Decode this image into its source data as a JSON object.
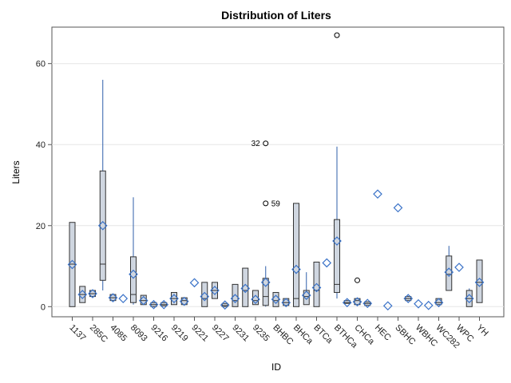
{
  "chart_data": {
    "type": "box",
    "title": "Distribution of Liters",
    "xlabel": "ID",
    "ylabel": "Liters",
    "ylim": [
      -2.5,
      69
    ],
    "yticks": [
      0,
      20,
      40,
      60
    ],
    "grid": "horizontal",
    "colors": {
      "box_fill": "#cfd6e0",
      "box_edge": "#333333",
      "whisker": "#2f5faa",
      "mean_marker": "#3b73c8",
      "grid": "#e6e6e6"
    },
    "categories": [
      "1137",
      "285C",
      "4085",
      "8093",
      "9216",
      "9219",
      "9221",
      "9227",
      "9231",
      "9235",
      "BHBC",
      "BHCa",
      "BTCa",
      "BTHCa",
      "CHCa",
      "HEC",
      "SBHC",
      "WBHC",
      "WC282",
      "WPC",
      "YH"
    ],
    "extra_groups": [
      {
        "after": "1137",
        "count": 1
      },
      {
        "after": "285C",
        "count": 1
      },
      {
        "after": "4085",
        "count": 1
      },
      {
        "after": "8093",
        "count": 1
      },
      {
        "after": "9216",
        "count": 1
      },
      {
        "after": "9219",
        "count": 1
      },
      {
        "after": "9221",
        "count": 1
      },
      {
        "after": "9227",
        "count": 1
      },
      {
        "after": "9231",
        "count": 1
      },
      {
        "after": "9235",
        "count": 1
      },
      {
        "after": "BHBC",
        "count": 1
      },
      {
        "after": "BHCa",
        "count": 1
      },
      {
        "after": "BTCa",
        "count": 1
      },
      {
        "after": "BTHCa",
        "count": 1
      },
      {
        "after": "CHCa",
        "count": 1
      },
      {
        "after": "HEC",
        "count": 1
      },
      {
        "after": "SBHC",
        "count": 1
      },
      {
        "after": "WBHC",
        "count": 1
      },
      {
        "after": "WC282",
        "count": 1
      },
      {
        "after": "WPC",
        "count": 1
      }
    ],
    "boxes": [
      {
        "q1": 0,
        "median": 10.5,
        "q3": 20.8,
        "wlo": 0,
        "whi": 20.8,
        "mean": 10.4
      },
      {
        "q1": 1,
        "median": 3,
        "q3": 5,
        "wlo": 1,
        "whi": 5,
        "mean": 3
      },
      {
        "q1": 2.5,
        "median": 3.2,
        "q3": 4,
        "wlo": 2.5,
        "whi": 4,
        "mean": 3.2
      },
      {
        "q1": 6.5,
        "median": 10.5,
        "q3": 33.5,
        "wlo": 4,
        "whi": 56,
        "mean": 20
      },
      {
        "q1": 1.5,
        "median": 2.2,
        "q3": 3,
        "wlo": 1.5,
        "whi": 3,
        "mean": 2.2
      },
      {
        "q1": null,
        "median": null,
        "q3": null,
        "wlo": null,
        "whi": null,
        "mean": 2
      },
      {
        "q1": 1,
        "median": 3,
        "q3": 12.3,
        "wlo": 0.5,
        "whi": 27,
        "mean": 8
      },
      {
        "q1": 0.5,
        "median": 1.5,
        "q3": 2.8,
        "wlo": 0.5,
        "whi": 2.8,
        "mean": 1.5
      },
      {
        "q1": 0,
        "median": 0.5,
        "q3": 1,
        "wlo": 0,
        "whi": 1,
        "mean": 0.5
      },
      {
        "q1": 0.2,
        "median": 0.5,
        "q3": 1,
        "wlo": 0.2,
        "whi": 1,
        "mean": 0.5
      },
      {
        "q1": 0.5,
        "median": 2,
        "q3": 3.5,
        "wlo": 0.5,
        "whi": 3.5,
        "mean": 2
      },
      {
        "q1": 0.5,
        "median": 1.5,
        "q3": 2.2,
        "wlo": 0.5,
        "whi": 2.2,
        "mean": 1.3
      },
      {
        "q1": null,
        "median": null,
        "q3": null,
        "wlo": null,
        "whi": null,
        "mean": 5.9
      },
      {
        "q1": 0,
        "median": 2,
        "q3": 6,
        "wlo": 0,
        "whi": 6,
        "mean": 2.5
      },
      {
        "q1": 2,
        "median": 4,
        "q3": 6,
        "wlo": 2,
        "whi": 6,
        "mean": 4
      },
      {
        "q1": 0,
        "median": 0.3,
        "q3": 0.8,
        "wlo": 0,
        "whi": 0.8,
        "mean": 0.4
      },
      {
        "q1": 0,
        "median": 1.5,
        "q3": 5.5,
        "wlo": 0,
        "whi": 5.5,
        "mean": 2
      },
      {
        "q1": 0,
        "median": 4,
        "q3": 9.5,
        "wlo": 0,
        "whi": 9.5,
        "mean": 4.5
      },
      {
        "q1": 0.5,
        "median": 1.5,
        "q3": 4,
        "wlo": 0.5,
        "whi": 4,
        "mean": 1.8
      },
      {
        "q1": 0.3,
        "median": 2.5,
        "q3": 7,
        "wlo": 0,
        "whi": 10,
        "mean": 6,
        "outliers": [
          {
            "y": 25.5,
            "label": "59"
          },
          {
            "y": 40.3,
            "label": "32"
          }
        ]
      },
      {
        "q1": 0,
        "median": 1.5,
        "q3": 3.5,
        "wlo": 0,
        "whi": 3.5,
        "mean": 1.8
      },
      {
        "q1": 0.3,
        "median": 1,
        "q3": 2,
        "wlo": 0.3,
        "whi": 2,
        "mean": 1
      },
      {
        "q1": 0,
        "median": 2,
        "q3": 25.5,
        "wlo": 0,
        "whi": 25.5,
        "mean": 9.2
      },
      {
        "q1": 0.5,
        "median": 2.5,
        "q3": 4,
        "wlo": 0.5,
        "whi": 8.5,
        "mean": 2.8
      },
      {
        "q1": 0,
        "median": 4,
        "q3": 11,
        "wlo": 0,
        "whi": 11,
        "mean": 4.7
      },
      {
        "q1": null,
        "median": null,
        "q3": null,
        "wlo": null,
        "whi": null,
        "mean": 10.8
      },
      {
        "q1": 3.5,
        "median": 5.5,
        "q3": 21.5,
        "wlo": 2,
        "whi": 39.5,
        "mean": 16.2,
        "outliers": [
          {
            "y": 67,
            "label": ""
          }
        ]
      },
      {
        "q1": 0.8,
        "median": 1,
        "q3": 1.5,
        "wlo": 0.8,
        "whi": 1.5,
        "mean": 1
      },
      {
        "q1": 0.5,
        "median": 1.5,
        "q3": 2,
        "wlo": 0.5,
        "whi": 2,
        "mean": 1.2,
        "outliers": [
          {
            "y": 6.5,
            "label": ""
          }
        ]
      },
      {
        "q1": 0.3,
        "median": 0.8,
        "q3": 1.2,
        "wlo": 0.3,
        "whi": 1.2,
        "mean": 0.8
      },
      {
        "q1": null,
        "median": null,
        "q3": null,
        "wlo": null,
        "whi": null,
        "mean": 27.8
      },
      {
        "q1": null,
        "median": null,
        "q3": null,
        "wlo": null,
        "whi": null,
        "mean": 0.2
      },
      {
        "q1": null,
        "median": null,
        "q3": null,
        "wlo": null,
        "whi": null,
        "mean": 24.4
      },
      {
        "q1": 1.5,
        "median": 2,
        "q3": 2.5,
        "wlo": 1.5,
        "whi": 2.5,
        "mean": 2
      },
      {
        "q1": null,
        "median": null,
        "q3": null,
        "wlo": null,
        "whi": null,
        "mean": 0.7
      },
      {
        "q1": null,
        "median": null,
        "q3": null,
        "wlo": null,
        "whi": null,
        "mean": 0.3
      },
      {
        "q1": 0.5,
        "median": 1,
        "q3": 2,
        "wlo": 0.5,
        "whi": 2,
        "mean": 1
      },
      {
        "q1": 4,
        "median": 8,
        "q3": 12.5,
        "wlo": 4,
        "whi": 15,
        "mean": 8.5
      },
      {
        "q1": null,
        "median": null,
        "q3": null,
        "wlo": null,
        "whi": null,
        "mean": 9.7
      },
      {
        "q1": 0,
        "median": 2,
        "q3": 4,
        "wlo": 0,
        "whi": 4.5,
        "mean": 2
      },
      {
        "q1": 1,
        "median": 6,
        "q3": 11.5,
        "wlo": 1,
        "whi": 11.5,
        "mean": 6
      }
    ]
  }
}
